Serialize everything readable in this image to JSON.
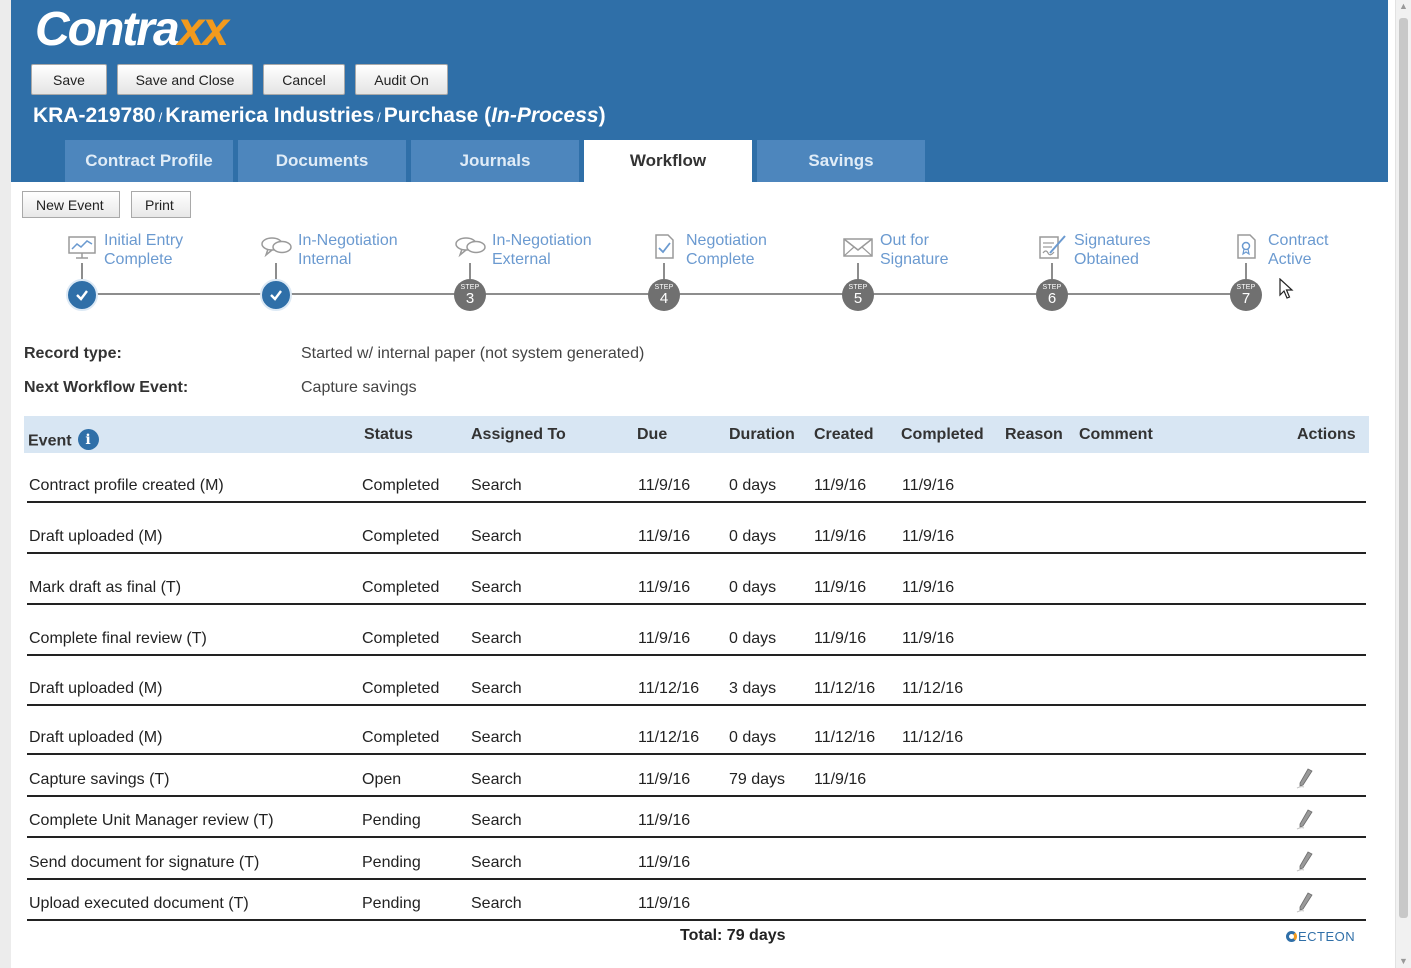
{
  "app": {
    "logo_main": "Contra",
    "logo_accent": "xx"
  },
  "toolbar": {
    "save": "Save",
    "save_close": "Save and Close",
    "cancel": "Cancel",
    "audit": "Audit On"
  },
  "record": {
    "id": "KRA-219780",
    "sep": "/",
    "company": "Kramerica Industries",
    "type": "Purchase",
    "status_open": "(",
    "status": "In-Process",
    "status_close": ")"
  },
  "tabs": [
    {
      "label": "Contract Profile"
    },
    {
      "label": "Documents"
    },
    {
      "label": "Journals"
    },
    {
      "label": "Workflow",
      "active": true
    },
    {
      "label": "Savings"
    }
  ],
  "actions": {
    "new_event": "New Event",
    "print": "Print"
  },
  "steps": [
    {
      "label": "Initial Entry\nComplete",
      "icon": "chart-icon",
      "state": "done",
      "step_word": "",
      "num": ""
    },
    {
      "label": "In-Negotiation\nInternal",
      "icon": "chat-bubbles-icon",
      "state": "done",
      "step_word": "",
      "num": ""
    },
    {
      "label": "In-Negotiation\nExternal",
      "icon": "chat-bubbles-icon",
      "state": "todo",
      "step_word": "STEP",
      "num": "3"
    },
    {
      "label": "Negotiation\nComplete",
      "icon": "document-check-icon",
      "state": "todo",
      "step_word": "STEP",
      "num": "4"
    },
    {
      "label": "Out for\nSignature",
      "icon": "envelope-icon",
      "state": "todo",
      "step_word": "STEP",
      "num": "5"
    },
    {
      "label": "Signatures\nObtained",
      "icon": "signature-icon",
      "state": "todo",
      "step_word": "STEP",
      "num": "6"
    },
    {
      "label": "Contract\nActive",
      "icon": "contract-icon",
      "state": "todo",
      "step_word": "STEP",
      "num": "7"
    }
  ],
  "info": {
    "record_type_label": "Record type:",
    "record_type_value": "Started w/ internal paper (not system generated)",
    "next_event_label": "Next Workflow Event:",
    "next_event_value": "Capture savings"
  },
  "table": {
    "headers": {
      "event": "Event",
      "status": "Status",
      "assigned": "Assigned To",
      "due": "Due",
      "duration": "Duration",
      "created": "Created",
      "completed": "Completed",
      "reason": "Reason",
      "comment": "Comment",
      "actions": "Actions"
    },
    "rows": [
      {
        "event": "Contract profile created (M)",
        "status": "Completed",
        "assigned": "Search",
        "due": "11/9/16",
        "duration": "0 days",
        "created": "11/9/16",
        "completed": "11/9/16",
        "editable": false
      },
      {
        "event": "Draft uploaded (M)",
        "status": "Completed",
        "assigned": "Search",
        "due": "11/9/16",
        "duration": "0 days",
        "created": "11/9/16",
        "completed": "11/9/16",
        "editable": false
      },
      {
        "event": "Mark draft as final (T)",
        "status": "Completed",
        "assigned": "Search",
        "due": "11/9/16",
        "duration": "0 days",
        "created": "11/9/16",
        "completed": "11/9/16",
        "editable": false
      },
      {
        "event": "Complete final review (T)",
        "status": "Completed",
        "assigned": "Search",
        "due": "11/9/16",
        "duration": "0 days",
        "created": "11/9/16",
        "completed": "11/9/16",
        "editable": false
      },
      {
        "event": "Draft uploaded (M)",
        "status": "Completed",
        "assigned": "Search",
        "due": "11/12/16",
        "duration": "3 days",
        "created": "11/12/16",
        "completed": "11/12/16",
        "editable": false
      },
      {
        "event": "Draft uploaded (M)",
        "status": "Completed",
        "assigned": "Search",
        "due": "11/12/16",
        "duration": "0 days",
        "created": "11/12/16",
        "completed": "11/12/16",
        "editable": false
      },
      {
        "event": "Capture savings (T)",
        "status": "Open",
        "assigned": "Search",
        "due": "11/9/16",
        "duration": "79 days",
        "created": "11/9/16",
        "completed": "",
        "editable": true
      },
      {
        "event": "Complete Unit Manager review (T)",
        "status": "Pending",
        "assigned": "Search",
        "due": "11/9/16",
        "duration": "",
        "created": "",
        "completed": "",
        "editable": true
      },
      {
        "event": "Send document for signature (T)",
        "status": "Pending",
        "assigned": "Search",
        "due": "11/9/16",
        "duration": "",
        "created": "",
        "completed": "",
        "editable": true
      },
      {
        "event": "Upload executed document (T)",
        "status": "Pending",
        "assigned": "Search",
        "due": "11/9/16",
        "duration": "",
        "created": "",
        "completed": "",
        "editable": true
      }
    ],
    "total": "Total: 79 days"
  },
  "footer": {
    "brand": "ECTEON"
  },
  "colors": {
    "brand_blue": "#2f6fa8",
    "accent_orange": "#f29a1d",
    "tab_inactive": "#4d86bd",
    "step_label": "#6b9ad0"
  }
}
